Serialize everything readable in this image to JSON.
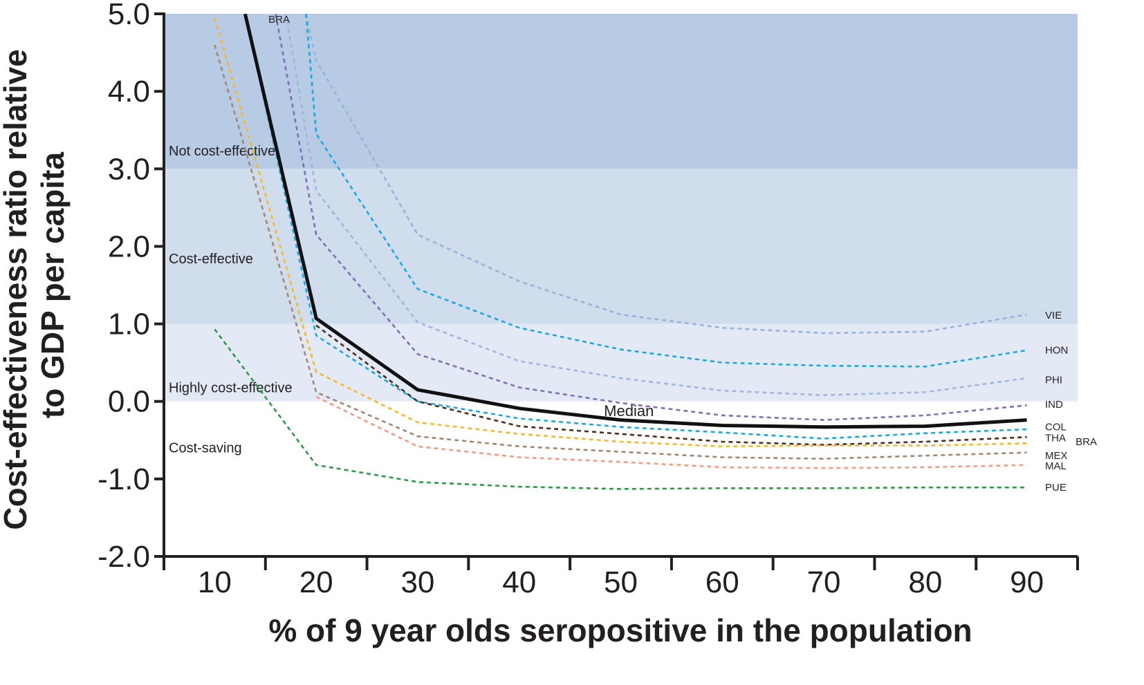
{
  "chart_data": {
    "type": "line",
    "xlabel": "% of 9 year olds seropositive in the population",
    "ylabel_lines": [
      "Cost-effectiveness ratio relative",
      "to GDP per capita"
    ],
    "x_ticks": [
      10,
      20,
      30,
      40,
      50,
      60,
      70,
      80,
      90
    ],
    "x_tick_labels": [
      "10",
      "20",
      "30",
      "40",
      "50",
      "60",
      "70",
      "80",
      "90"
    ],
    "y_ticks": [
      5.0,
      4.0,
      3.0,
      2.0,
      1.0,
      0.0,
      -1.0,
      -2.0
    ],
    "y_tick_labels": [
      "5.0",
      "4.0",
      "3.0",
      "2.0",
      "1.0",
      "0.0",
      "-1.0",
      "-2.0"
    ],
    "xlim": [
      5,
      95
    ],
    "ylim": [
      -2.0,
      5.0
    ],
    "bands": [
      {
        "label": "Not cost-effective",
        "from": 3.0,
        "to": 5.0,
        "color": "#b8cbe4"
      },
      {
        "label": "Cost-effective",
        "from": 1.0,
        "to": 3.0,
        "color": "#d0dded"
      },
      {
        "label": "Highly cost-effective",
        "from": 0.0,
        "to": 1.0,
        "color": "#e4eaf5"
      },
      {
        "label": "Cost-saving",
        "from": -2.0,
        "to": 0.0,
        "color": "#ffffff"
      }
    ],
    "series": [
      {
        "name": "VIE",
        "color": "#96b3db",
        "dashed": true,
        "x": [
          19,
          20,
          30,
          40,
          50,
          60,
          70,
          80,
          90
        ],
        "y": [
          5.0,
          4.4,
          2.15,
          1.55,
          1.12,
          0.95,
          0.88,
          0.9,
          1.12
        ]
      },
      {
        "name": "HON",
        "color": "#1aa8e0",
        "dashed": true,
        "x": [
          19,
          20,
          30,
          40,
          50,
          60,
          70,
          80,
          90
        ],
        "y": [
          5.0,
          3.45,
          1.45,
          0.95,
          0.67,
          0.5,
          0.46,
          0.45,
          0.66
        ]
      },
      {
        "name": "PHI",
        "color": "#9fb7dc",
        "dashed": true,
        "x": [
          17,
          20,
          30,
          40,
          50,
          60,
          70,
          80,
          90
        ],
        "y": [
          5.0,
          2.72,
          1.02,
          0.52,
          0.3,
          0.14,
          0.08,
          0.12,
          0.3
        ]
      },
      {
        "name": "IND",
        "color": "#7e6fb8",
        "dashed": true,
        "x": [
          16,
          20,
          30,
          40,
          50,
          60,
          70,
          80,
          90
        ],
        "y": [
          5.0,
          2.15,
          0.61,
          0.18,
          -0.02,
          -0.18,
          -0.24,
          -0.18,
          -0.05
        ]
      },
      {
        "name": "COL",
        "color": "#1aa8e0",
        "dashed": true,
        "x": [
          13,
          20,
          30,
          40,
          50,
          60,
          70,
          80,
          90
        ],
        "y": [
          5.0,
          0.85,
          0.0,
          -0.22,
          -0.33,
          -0.4,
          -0.48,
          -0.41,
          -0.36
        ]
      },
      {
        "name": "THA",
        "color": "#4a2f1c",
        "dashed": true,
        "x": [
          20,
          30,
          40,
          50,
          60,
          70,
          80,
          90
        ],
        "y": [
          0.98,
          0.0,
          -0.32,
          -0.42,
          -0.52,
          -0.56,
          -0.52,
          -0.46
        ]
      },
      {
        "name": "BRA",
        "color": "#f7b82a",
        "dashed": true,
        "x": [
          10,
          20,
          30,
          40,
          50,
          60,
          70,
          80,
          90
        ],
        "y": [
          4.95,
          0.38,
          -0.27,
          -0.42,
          -0.52,
          -0.58,
          -0.57,
          -0.57,
          -0.54
        ]
      },
      {
        "name": "MEX",
        "color": "#a08872",
        "dashed": true,
        "x": [
          10,
          20,
          30,
          40,
          50,
          60,
          70,
          80,
          90
        ],
        "y": [
          4.6,
          0.12,
          -0.45,
          -0.58,
          -0.65,
          -0.72,
          -0.74,
          -0.7,
          -0.66
        ]
      },
      {
        "name": "MAL",
        "color": "#f29c82",
        "dashed": true,
        "x": [
          20,
          30,
          40,
          50,
          60,
          70,
          80,
          90
        ],
        "y": [
          0.06,
          -0.58,
          -0.72,
          -0.78,
          -0.85,
          -0.86,
          -0.85,
          -0.82
        ]
      },
      {
        "name": "PUE",
        "color": "#2a9a48",
        "dashed": true,
        "x": [
          10,
          20,
          30,
          40,
          50,
          60,
          70,
          80,
          90
        ],
        "y": [
          0.93,
          -0.82,
          -1.04,
          -1.1,
          -1.13,
          -1.12,
          -1.12,
          -1.11,
          -1.11
        ]
      },
      {
        "name": "Median",
        "color": "#111111",
        "dashed": false,
        "x": [
          13,
          20,
          30,
          40,
          50,
          60,
          70,
          80,
          90
        ],
        "y": [
          5.0,
          1.07,
          0.15,
          -0.09,
          -0.24,
          -0.31,
          -0.33,
          -0.32,
          -0.24
        ]
      }
    ],
    "series_labels": [
      {
        "text": "VIE",
        "x": 91.8,
        "y": 1.11
      },
      {
        "text": "HON",
        "x": 91.8,
        "y": 0.66
      },
      {
        "text": "PHI",
        "x": 91.8,
        "y": 0.28
      },
      {
        "text": "IND",
        "x": 91.8,
        "y": -0.04
      },
      {
        "text": "COL",
        "x": 91.8,
        "y": -0.33
      },
      {
        "text": "THA",
        "x": 91.8,
        "y": -0.47
      },
      {
        "text": "BRA",
        "x": 94.8,
        "y": -0.52
      },
      {
        "text": "MEX",
        "x": 91.8,
        "y": -0.7
      },
      {
        "text": "MAL",
        "x": 91.8,
        "y": -0.83
      },
      {
        "text": "PUE",
        "x": 91.8,
        "y": -1.11
      },
      {
        "text": "BRA",
        "x": 15.3,
        "y": 4.93
      }
    ],
    "median_label": {
      "text": "Median",
      "x": 50.8,
      "y": -0.12
    },
    "grid": false,
    "legend": "none"
  }
}
